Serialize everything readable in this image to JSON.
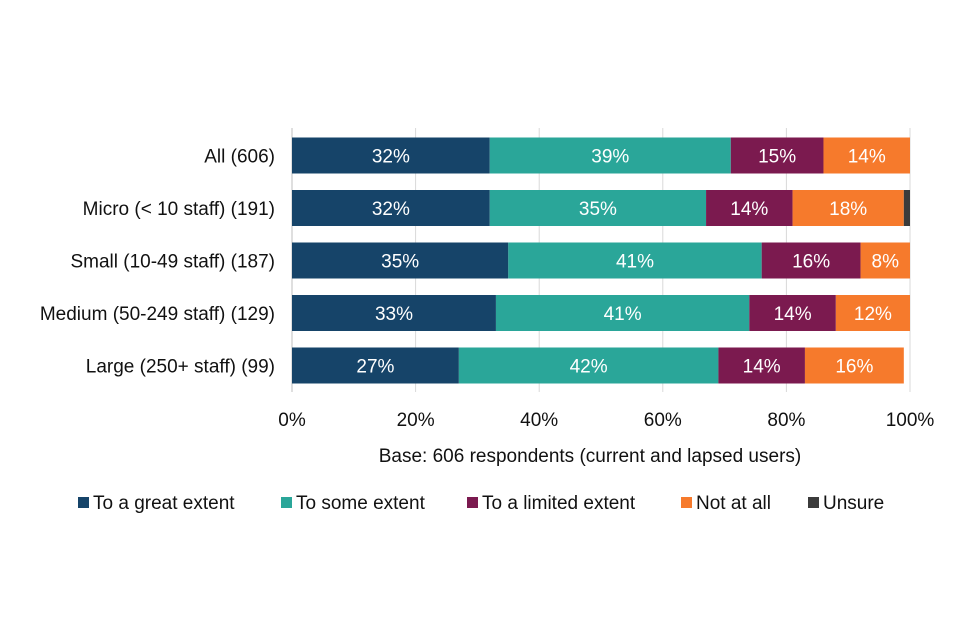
{
  "chart_data": {
    "type": "bar",
    "orientation": "horizontal",
    "stacked": true,
    "categories": [
      "All (606)",
      "Micro (< 10 staff) (191)",
      "Small (10-49 staff) (187)",
      "Medium (50-249 staff) (129)",
      "Large (250+ staff) (99)"
    ],
    "series": [
      {
        "name": "To a great extent",
        "color": "#164469",
        "values": [
          32,
          32,
          35,
          33,
          27
        ],
        "labels": [
          "32%",
          "32%",
          "35%",
          "33%",
          "27%"
        ]
      },
      {
        "name": "To some extent",
        "color": "#2aa699",
        "values": [
          39,
          35,
          41,
          41,
          42
        ],
        "labels": [
          "39%",
          "35%",
          "41%",
          "41%",
          "42%"
        ]
      },
      {
        "name": "To a limited extent",
        "color": "#7b1a4f",
        "values": [
          15,
          14,
          16,
          14,
          14
        ],
        "labels": [
          "15%",
          "14%",
          "16%",
          "14%",
          "14%"
        ]
      },
      {
        "name": "Not at all",
        "color": "#f67a2c",
        "values": [
          14,
          18,
          8,
          12,
          16
        ],
        "labels": [
          "14%",
          "18%",
          "8%",
          "12%",
          "16%"
        ]
      },
      {
        "name": "Unsure",
        "color": "#3b3b3b",
        "values": [
          0,
          1,
          0,
          0,
          0
        ],
        "labels": [
          "",
          "",
          "",
          "",
          ""
        ]
      }
    ],
    "xlim": [
      0,
      100
    ],
    "xticks": [
      "0%",
      "20%",
      "40%",
      "60%",
      "80%",
      "100%"
    ],
    "xlabel": "Base: 606 respondents (current and lapsed users)",
    "gridlines": true,
    "legend_position": "bottom"
  }
}
